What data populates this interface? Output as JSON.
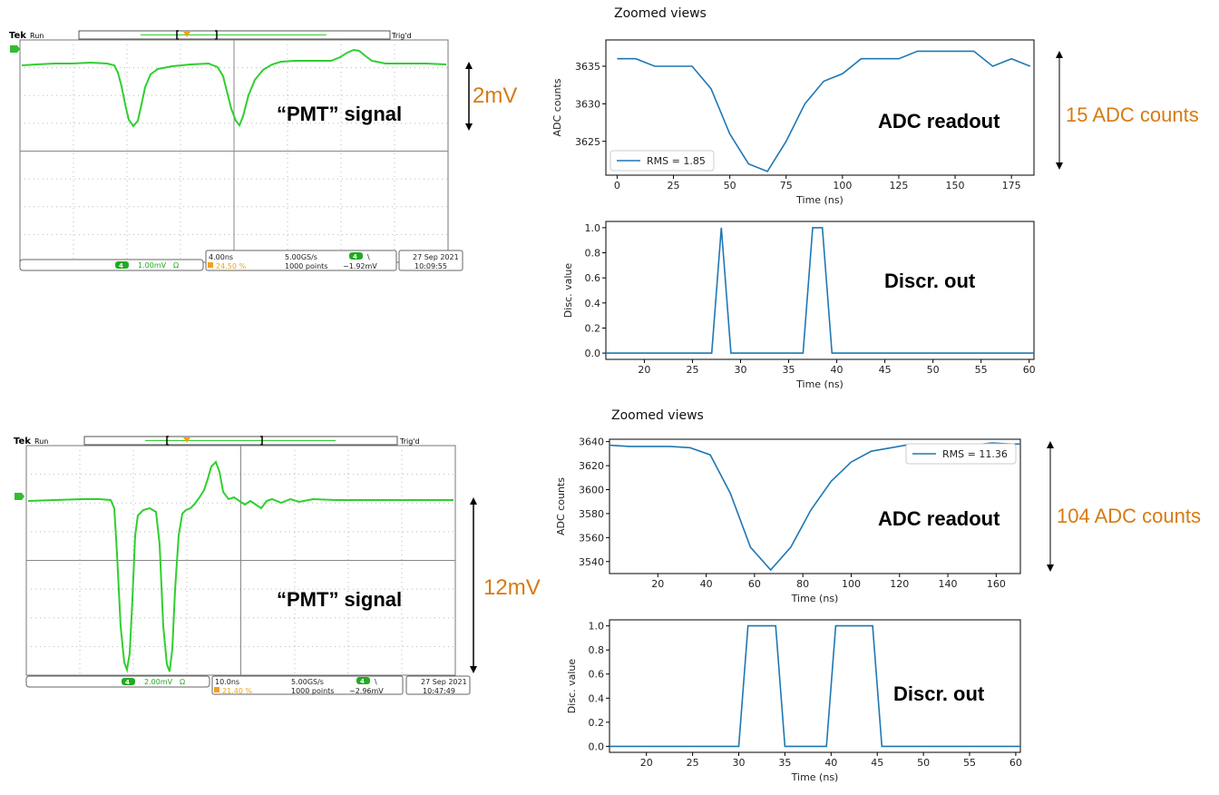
{
  "panels": [
    {
      "scope": {
        "brand": "Tek",
        "run_state": "Run",
        "trigger_state": "Trig'd",
        "channel_badge": "4",
        "channel_scale": "1.00mV",
        "channel_coupling": "Ω",
        "time_div": "4.00ns",
        "trigger_pos": "24.50 %",
        "sample_rate": "5.00GS/s",
        "record_length": "1000 points",
        "trigger_slope": "\\",
        "trigger_level": "−1.92mV",
        "date": "27 Sep 2021",
        "time": "10:09:55",
        "signal_label": "“PMT” signal",
        "amplitude_label": "2mV"
      },
      "zoom_title": "Zoomed views",
      "adc_annotation": "ADC readout",
      "adc_span_label": "15 ADC counts",
      "disc_annotation": "Discr. out"
    },
    {
      "scope": {
        "brand": "Tek",
        "run_state": "Run",
        "trigger_state": "Trig'd",
        "channel_badge": "4",
        "channel_scale": "2.00mV",
        "channel_coupling": "Ω",
        "time_div": "10.0ns",
        "trigger_pos": "21.40 %",
        "sample_rate": "5.00GS/s",
        "record_length": "1000 points",
        "trigger_slope": "\\",
        "trigger_level": "−2.96mV",
        "date": "27 Sep 2021",
        "time": "10:47:49",
        "signal_label": "“PMT” signal",
        "amplitude_label": "12mV"
      },
      "zoom_title": "Zoomed views",
      "adc_annotation": "ADC readout",
      "adc_span_label": "104 ADC counts",
      "disc_annotation": "Discr. out"
    }
  ],
  "colors": {
    "trace_green": "#2fcf2f",
    "line_blue": "#1f77b4",
    "annotation_orange": "#d77a12",
    "scope_orange": "#f0a020"
  },
  "chart_data": [
    {
      "id": "adc1",
      "type": "line",
      "xlabel": "Time (ns)",
      "ylabel": "ADC counts",
      "xlim": [
        -5,
        185
      ],
      "ylim": [
        3620.5,
        3638.5
      ],
      "xticks": [
        0,
        25,
        50,
        75,
        100,
        125,
        150,
        175
      ],
      "yticks": [
        3625,
        3630,
        3635
      ],
      "legend": "bottom-left",
      "series": [
        {
          "name": "RMS = 1.85",
          "x": [
            0,
            8.3,
            16.7,
            25,
            33.3,
            41.7,
            50,
            58.3,
            66.7,
            75,
            83.3,
            91.7,
            100,
            108.3,
            116.7,
            125,
            133.3,
            141.7,
            150,
            158.3,
            166.7,
            175,
            183.3
          ],
          "y": [
            3636,
            3636,
            3635,
            3635,
            3635,
            3632,
            3626,
            3622,
            3621,
            3625,
            3630,
            3633,
            3634,
            3636,
            3636,
            3636,
            3637,
            3637,
            3637,
            3637,
            3635,
            3636,
            3635
          ]
        }
      ]
    },
    {
      "id": "disc1",
      "type": "line",
      "xlabel": "Time (ns)",
      "ylabel": "Disc. value",
      "xlim": [
        16,
        60.5
      ],
      "ylim": [
        -0.05,
        1.05
      ],
      "xticks": [
        20,
        25,
        30,
        35,
        40,
        45,
        50,
        55,
        60
      ],
      "yticks": [
        0.0,
        0.2,
        0.4,
        0.6,
        0.8,
        1.0
      ],
      "series": [
        {
          "x": [
            16,
            27,
            28,
            29,
            36.5,
            37.5,
            38.5,
            39.5,
            60.5
          ],
          "y": [
            0,
            0,
            1,
            0,
            0,
            1,
            1,
            0,
            0
          ]
        }
      ]
    },
    {
      "id": "adc2",
      "type": "line",
      "xlabel": "Time (ns)",
      "ylabel": "ADC counts",
      "xlim": [
        0,
        170
      ],
      "ylim": [
        3530,
        3642
      ],
      "xticks": [
        20,
        40,
        60,
        80,
        100,
        120,
        140,
        160
      ],
      "yticks": [
        3540,
        3560,
        3580,
        3600,
        3620,
        3640
      ],
      "legend": "top-right",
      "series": [
        {
          "name": "RMS = 11.36",
          "x": [
            0,
            8.3,
            16.7,
            25,
            33.3,
            41.7,
            50,
            58.3,
            66.7,
            75,
            83.3,
            91.7,
            100,
            108.3,
            116.7,
            125,
            133.3,
            141.7,
            150,
            158.3,
            166.7,
            170
          ],
          "y": [
            3637,
            3636,
            3636,
            3636,
            3635,
            3629,
            3597,
            3552,
            3533,
            3552,
            3583,
            3607,
            3623,
            3632,
            3635,
            3638,
            3638,
            3638,
            3637,
            3639,
            3638,
            3638
          ]
        }
      ]
    },
    {
      "id": "disc2",
      "type": "line",
      "xlabel": "Time (ns)",
      "ylabel": "Disc. value",
      "xlim": [
        16,
        60.5
      ],
      "ylim": [
        -0.05,
        1.05
      ],
      "xticks": [
        20,
        25,
        30,
        35,
        40,
        45,
        50,
        55,
        60
      ],
      "yticks": [
        0.0,
        0.2,
        0.4,
        0.6,
        0.8,
        1.0
      ],
      "series": [
        {
          "x": [
            16,
            30,
            31,
            34,
            35,
            39.5,
            40.5,
            44.5,
            45.5,
            60.5
          ],
          "y": [
            0,
            0,
            1,
            1,
            0,
            0,
            1,
            1,
            0,
            0
          ]
        }
      ]
    }
  ]
}
